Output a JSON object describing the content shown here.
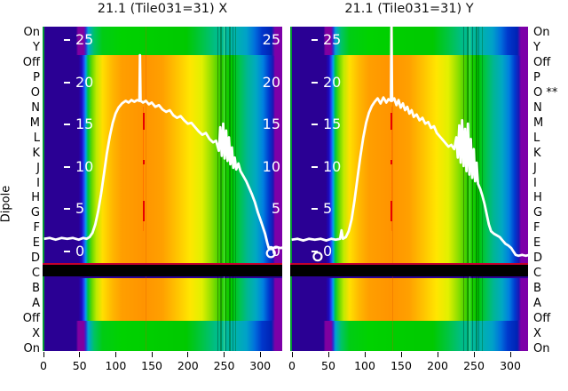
{
  "figure": {
    "ylabel": "Dipole",
    "x_tick_labels": [
      "0",
      "50",
      "100",
      "150",
      "200",
      "250",
      "300"
    ],
    "inner_value_ticks": [
      "25",
      "20",
      "15",
      "10",
      "5",
      "0"
    ],
    "row_labels_left": [
      "On",
      "Y",
      "Off",
      "P",
      "O",
      "N",
      "M",
      "L",
      "K",
      "J",
      "I",
      "H",
      "G",
      "F",
      "E",
      "D",
      "C",
      "B",
      "A",
      "Off",
      "X",
      "On"
    ],
    "row_labels_right": [
      "On",
      "Y",
      "Off",
      "P",
      "O **",
      "N",
      "M",
      "L",
      "K",
      "J",
      "I",
      "H",
      "G",
      "F",
      "E",
      "D",
      "C",
      "B",
      "A",
      "Off",
      "X",
      "On"
    ]
  },
  "colors": {
    "background": "#ffffff",
    "text": "#000000",
    "curve": "#ffffff",
    "inner_tick_text": "#ffffff",
    "black_band": "#000000",
    "crimson_line": "#c4002e",
    "red_dash": "#e80000",
    "red_dash_faint": "rgba(255,80,0,0.45)",
    "left_edge_line": "rgba(0,170,40,0.9)",
    "band_main_stops": [
      [
        0.0,
        "#2a0094"
      ],
      [
        0.15,
        "#2a0094"
      ],
      [
        0.163,
        "#1b0bc0"
      ],
      [
        0.172,
        "#2343f0"
      ],
      [
        0.18,
        "#00a0f0"
      ],
      [
        0.19,
        "#00c83c"
      ],
      [
        0.205,
        "#62d800"
      ],
      [
        0.225,
        "#c0ea00"
      ],
      [
        0.25,
        "#ffdf00"
      ],
      [
        0.29,
        "#ffb800"
      ],
      [
        0.33,
        "#ff9f00"
      ],
      [
        0.42,
        "#ff9400"
      ],
      [
        0.5,
        "#ffa000"
      ],
      [
        0.56,
        "#ffc300"
      ],
      [
        0.615,
        "#ffe600"
      ],
      [
        0.665,
        "#e0f000"
      ],
      [
        0.705,
        "#8fdf00"
      ],
      [
        0.745,
        "#2fcf00"
      ],
      [
        0.79,
        "#00c800"
      ],
      [
        0.825,
        "#00c352"
      ],
      [
        0.855,
        "#00b694"
      ],
      [
        0.89,
        "#00a9c2"
      ],
      [
        0.92,
        "#0080e0"
      ],
      [
        0.945,
        "#0039cf"
      ],
      [
        0.962,
        "#1c17b4"
      ],
      [
        0.97,
        "#7c00a8"
      ],
      [
        1.0,
        "#7c00a8"
      ]
    ],
    "band_outer_stops": [
      [
        0.0,
        "#2a0094"
      ],
      [
        0.14,
        "#2a0094"
      ],
      [
        0.148,
        "#8000a0"
      ],
      [
        0.172,
        "#8000a0"
      ],
      [
        0.18,
        "#2e2ed2"
      ],
      [
        0.19,
        "#00a2d8"
      ],
      [
        0.215,
        "#00c464"
      ],
      [
        0.25,
        "#00cc14"
      ],
      [
        0.33,
        "#00d200"
      ],
      [
        0.5,
        "#00cc00"
      ],
      [
        0.6,
        "#00c900"
      ],
      [
        0.66,
        "#00c53e"
      ],
      [
        0.72,
        "#00bd85"
      ],
      [
        0.8,
        "#00b4aa"
      ],
      [
        0.85,
        "#00a2c8"
      ],
      [
        0.885,
        "#0070dc"
      ],
      [
        0.915,
        "#0038cc"
      ],
      [
        0.955,
        "#0022b4"
      ],
      [
        0.97,
        "#7c00a8"
      ],
      [
        1.0,
        "#7c00a8"
      ]
    ],
    "stripe_overlays": [
      [
        0.43,
        1,
        "rgba(220,80,0,0.28)"
      ],
      [
        0.728,
        1,
        "rgba(0,0,0,0.30)"
      ],
      [
        0.742,
        2,
        "rgba(0,60,0,0.38)"
      ],
      [
        0.755,
        1,
        "rgba(140,255,140,0.45)"
      ],
      [
        0.764,
        1,
        "rgba(0,0,0,0.30)"
      ],
      [
        0.778,
        2,
        "rgba(0,60,0,0.38)"
      ],
      [
        0.792,
        1,
        "rgba(0,0,0,0.28)"
      ],
      [
        0.805,
        1,
        "rgba(0,80,0,0.33)"
      ]
    ]
  },
  "chart_data": [
    {
      "type": "heatmap+line",
      "title": "21.1 (Tile031=31) X",
      "colormap": "rainbow",
      "x_ticks": [
        0,
        50,
        100,
        150,
        200,
        250,
        300
      ],
      "x_range": [
        0,
        333
      ],
      "value_ticks": [
        25,
        20,
        15,
        10,
        5,
        0
      ],
      "ylabel": "Dipole",
      "rows_top_to_bottom": [
        "On",
        "Y",
        "Off",
        "P",
        "O",
        "N",
        "M",
        "L",
        "K",
        "J",
        "I",
        "H",
        "G",
        "F",
        "E",
        "D",
        "C",
        "B",
        "A",
        "Off",
        "X",
        "On"
      ],
      "black_row": "C",
      "red_dashed_line_x": 139,
      "red_dash_segments_value": [
        [
          16.4,
          14.4
        ],
        [
          10.8,
          10.3
        ],
        [
          6.0,
          3.6
        ]
      ],
      "ring_marker": {
        "x": 316,
        "value": -0.2
      },
      "profile": [
        [
          2,
          1.5
        ],
        [
          10,
          1.6
        ],
        [
          18,
          1.4
        ],
        [
          26,
          1.6
        ],
        [
          34,
          1.5
        ],
        [
          42,
          1.6
        ],
        [
          50,
          1.4
        ],
        [
          56,
          1.6
        ],
        [
          61,
          1.5
        ],
        [
          65,
          1.7
        ],
        [
          69,
          2.2
        ],
        [
          73,
          3.2
        ],
        [
          77,
          4.8
        ],
        [
          81,
          6.8
        ],
        [
          85,
          9.2
        ],
        [
          89,
          11.6
        ],
        [
          93,
          13.6
        ],
        [
          97,
          15.2
        ],
        [
          101,
          16.3
        ],
        [
          105,
          17.0
        ],
        [
          110,
          17.5
        ],
        [
          115,
          17.8
        ],
        [
          119,
          17.6
        ],
        [
          123,
          17.9
        ],
        [
          127,
          17.7
        ],
        [
          131,
          17.9
        ],
        [
          134,
          17.8
        ],
        [
          134.8,
          23.2
        ],
        [
          135.6,
          17.8
        ],
        [
          139,
          17.6
        ],
        [
          143,
          17.8
        ],
        [
          147,
          17.4
        ],
        [
          151,
          17.6
        ],
        [
          156,
          17.1
        ],
        [
          161,
          17.3
        ],
        [
          166,
          16.8
        ],
        [
          171,
          16.5
        ],
        [
          176,
          16.7
        ],
        [
          181,
          16.1
        ],
        [
          186,
          15.8
        ],
        [
          191,
          16.0
        ],
        [
          196,
          15.5
        ],
        [
          201,
          15.1
        ],
        [
          206,
          15.2
        ],
        [
          211,
          14.7
        ],
        [
          216,
          14.2
        ],
        [
          221,
          13.8
        ],
        [
          226,
          14.0
        ],
        [
          231,
          13.3
        ],
        [
          236,
          12.9
        ],
        [
          240,
          13.1
        ],
        [
          244,
          11.9
        ],
        [
          246,
          14.7
        ],
        [
          248,
          11.3
        ],
        [
          250,
          15.1
        ],
        [
          252,
          11.0
        ],
        [
          254,
          14.3
        ],
        [
          256,
          10.7
        ],
        [
          258,
          13.5
        ],
        [
          260,
          10.3
        ],
        [
          262,
          12.3
        ],
        [
          264,
          9.9
        ],
        [
          266,
          11.1
        ],
        [
          268,
          9.7
        ],
        [
          271,
          10.4
        ],
        [
          274,
          9.5
        ],
        [
          278,
          8.9
        ],
        [
          282,
          8.3
        ],
        [
          286,
          7.5
        ],
        [
          290,
          6.7
        ],
        [
          294,
          5.8
        ],
        [
          298,
          4.6
        ],
        [
          303,
          3.4
        ],
        [
          308,
          2.1
        ],
        [
          311,
          1.0
        ],
        [
          313,
          0.4
        ],
        [
          316,
          0.5
        ],
        [
          320,
          0.4
        ],
        [
          325,
          0.5
        ],
        [
          330,
          0.4
        ],
        [
          333,
          0.5
        ]
      ]
    },
    {
      "type": "heatmap+line",
      "title": "21.1 (Tile031=31) Y",
      "colormap": "rainbow",
      "x_ticks": [
        0,
        50,
        100,
        150,
        200,
        250,
        300
      ],
      "x_range": [
        0,
        333
      ],
      "value_ticks": [
        25,
        20,
        15,
        10,
        5,
        0
      ],
      "ylabel": "Dipole",
      "rows_top_to_bottom": [
        "On",
        "Y",
        "Off",
        "P",
        "O",
        "N",
        "M",
        "L",
        "K",
        "J",
        "I",
        "H",
        "G",
        "F",
        "E",
        "D",
        "C",
        "B",
        "A",
        "Off",
        "X",
        "On"
      ],
      "black_row": "C",
      "red_dashed_line_x": 140,
      "red_dash_segments_value": [
        [
          16.4,
          14.4
        ],
        [
          10.8,
          10.3
        ],
        [
          6.0,
          3.6
        ]
      ],
      "ring_marker": {
        "x": 38,
        "value": -0.6
      },
      "profile": [
        [
          2,
          1.4
        ],
        [
          10,
          1.5
        ],
        [
          18,
          1.3
        ],
        [
          26,
          1.5
        ],
        [
          34,
          1.4
        ],
        [
          42,
          1.5
        ],
        [
          50,
          1.3
        ],
        [
          57,
          1.5
        ],
        [
          63,
          1.4
        ],
        [
          69,
          1.5
        ],
        [
          71,
          2.5
        ],
        [
          73,
          1.5
        ],
        [
          77,
          1.7
        ],
        [
          81,
          2.4
        ],
        [
          85,
          3.8
        ],
        [
          89,
          6.0
        ],
        [
          93,
          8.6
        ],
        [
          97,
          11.2
        ],
        [
          101,
          13.4
        ],
        [
          105,
          15.2
        ],
        [
          109,
          16.4
        ],
        [
          113,
          17.2
        ],
        [
          117,
          17.7
        ],
        [
          121,
          18.1
        ],
        [
          125,
          17.5
        ],
        [
          129,
          18.2
        ],
        [
          133,
          17.6
        ],
        [
          136,
          18.0
        ],
        [
          139.4,
          17.8
        ],
        [
          140.2,
          26.9
        ],
        [
          141.0,
          17.8
        ],
        [
          144,
          18.1
        ],
        [
          147,
          17.3
        ],
        [
          150,
          17.9
        ],
        [
          153,
          17.0
        ],
        [
          156,
          17.5
        ],
        [
          159,
          16.7
        ],
        [
          162,
          17.1
        ],
        [
          165,
          16.3
        ],
        [
          168,
          16.7
        ],
        [
          171,
          15.9
        ],
        [
          175,
          16.2
        ],
        [
          179,
          15.5
        ],
        [
          183,
          15.8
        ],
        [
          187,
          15.1
        ],
        [
          191,
          15.3
        ],
        [
          195,
          14.6
        ],
        [
          199,
          14.8
        ],
        [
          203,
          14.0
        ],
        [
          207,
          13.6
        ],
        [
          211,
          13.2
        ],
        [
          215,
          12.8
        ],
        [
          219,
          12.4
        ],
        [
          223,
          12.6
        ],
        [
          227,
          12.1
        ],
        [
          230,
          13.5
        ],
        [
          232,
          11.1
        ],
        [
          234,
          14.9
        ],
        [
          236,
          10.5
        ],
        [
          238,
          15.5
        ],
        [
          240,
          10.1
        ],
        [
          242,
          14.5
        ],
        [
          244,
          9.5
        ],
        [
          246,
          15.1
        ],
        [
          248,
          9.1
        ],
        [
          250,
          13.3
        ],
        [
          252,
          8.7
        ],
        [
          254,
          12.1
        ],
        [
          256,
          8.3
        ],
        [
          258,
          10.5
        ],
        [
          260,
          8.0
        ],
        [
          263,
          7.4
        ],
        [
          266,
          6.6
        ],
        [
          269,
          5.6
        ],
        [
          272,
          4.4
        ],
        [
          275,
          3.2
        ],
        [
          278,
          2.4
        ],
        [
          282,
          2.1
        ],
        [
          286,
          1.9
        ],
        [
          290,
          1.7
        ],
        [
          294,
          1.3
        ],
        [
          298,
          0.9
        ],
        [
          302,
          0.7
        ],
        [
          306,
          0.4
        ],
        [
          309,
          0.0
        ],
        [
          312,
          -0.4
        ],
        [
          316,
          -0.5
        ],
        [
          321,
          -0.4
        ],
        [
          326,
          -0.5
        ],
        [
          331,
          -0.4
        ]
      ]
    }
  ]
}
